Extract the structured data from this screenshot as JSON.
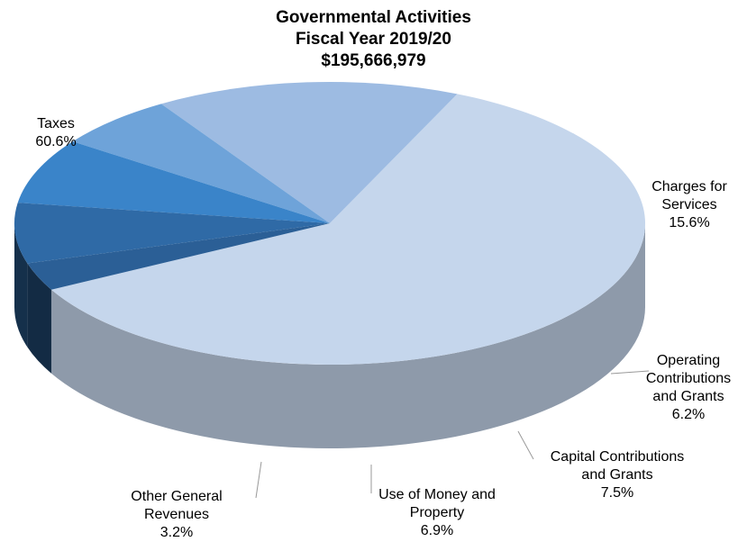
{
  "chart_data": {
    "type": "pie",
    "title_lines": [
      "Governmental Activities",
      "Fiscal Year 2019/20",
      "$195,666,979"
    ],
    "slices": [
      {
        "label": "Taxes",
        "value": 60.6,
        "value_label": "60.6%",
        "color": "#c5d6ec"
      },
      {
        "label": "Charges for Services",
        "value": 15.6,
        "value_label": "15.6%",
        "color": "#9dbbe2"
      },
      {
        "label": "Operating Contributions and Grants",
        "value": 6.2,
        "value_label": "6.2%",
        "color": "#6ea3d9"
      },
      {
        "label": "Capital Contributions and Grants",
        "value": 7.5,
        "value_label": "7.5%",
        "color": "#3a84c9"
      },
      {
        "label": "Use of Money and Property",
        "value": 6.9,
        "value_label": "6.9%",
        "color": "#2f6aa6"
      },
      {
        "label": "Other General Revenues",
        "value": 3.2,
        "value_label": "3.2%",
        "color": "#2b5f96"
      }
    ],
    "label_lines": [
      [
        "Taxes",
        "60.6%"
      ],
      [
        "Charges for",
        "Services",
        "15.6%"
      ],
      [
        "Operating",
        "Contributions",
        "and Grants",
        "6.2%"
      ],
      [
        "Capital Contributions",
        "and Grants",
        "7.5%"
      ],
      [
        "Use of Money and",
        "Property",
        "6.9%"
      ],
      [
        "Other General",
        "Revenues",
        "3.2%"
      ]
    ],
    "legend": "none"
  }
}
